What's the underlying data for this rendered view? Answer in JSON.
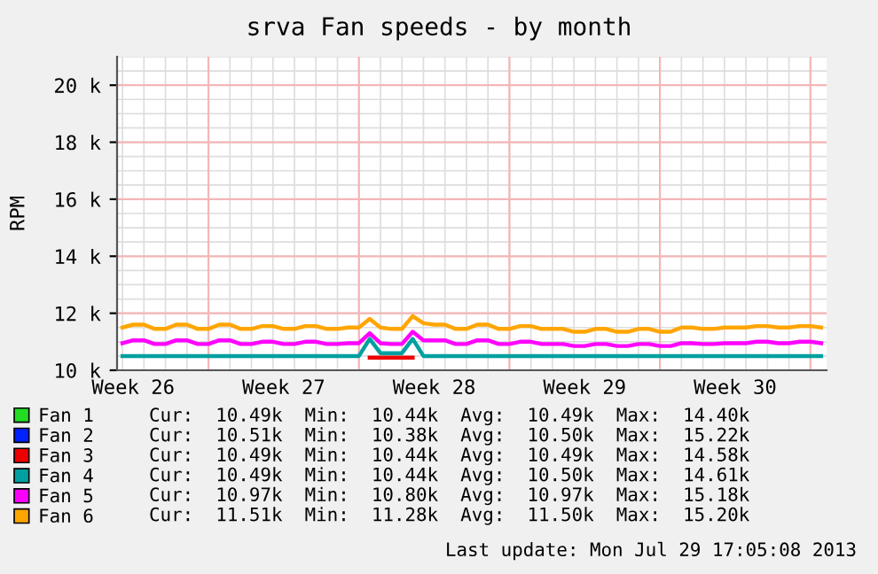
{
  "chart_data": {
    "type": "line",
    "title": "srva Fan speeds - by month",
    "ylabel": "RPM",
    "categories": [
      null,
      "Week 26",
      null,
      null,
      null,
      null,
      null,
      null,
      null,
      null,
      null,
      null,
      null,
      null,
      null,
      "Week 27",
      null,
      null,
      null,
      null,
      null,
      null,
      null,
      null,
      null,
      null,
      null,
      null,
      null,
      "Week 28",
      null,
      null,
      null,
      null,
      null,
      null,
      null,
      null,
      null,
      null,
      null,
      null,
      null,
      "Week 29",
      null,
      null,
      null,
      null,
      null,
      null,
      null,
      null,
      null,
      null,
      null,
      null,
      null,
      "Week 30",
      null,
      null,
      null,
      null,
      null,
      null,
      null,
      null
    ],
    "series": [
      {
        "name": "Fan 1",
        "color": "#22dd22",
        "values": [
          null,
          null,
          null,
          null,
          null,
          null,
          null,
          null,
          null,
          null,
          null,
          null,
          null,
          null,
          null,
          null,
          null,
          null,
          null,
          null,
          null,
          null,
          null,
          null,
          null,
          null,
          null,
          null,
          null,
          null,
          null,
          null,
          null,
          null,
          null,
          null,
          null,
          null,
          null,
          null,
          null,
          null,
          null,
          null,
          null,
          null,
          null,
          null,
          null,
          null,
          null,
          null,
          null,
          null,
          null,
          null,
          null,
          null,
          null,
          null,
          null,
          null,
          null,
          null,
          null,
          null
        ]
      },
      {
        "name": "Fan 2",
        "color": "#0022ff",
        "values": [
          null,
          null,
          null,
          null,
          null,
          null,
          null,
          null,
          null,
          null,
          null,
          null,
          null,
          null,
          null,
          null,
          null,
          null,
          null,
          null,
          null,
          null,
          null,
          null,
          null,
          null,
          null,
          null,
          null,
          null,
          null,
          null,
          null,
          null,
          null,
          null,
          null,
          null,
          null,
          null,
          null,
          null,
          null,
          null,
          null,
          null,
          null,
          null,
          null,
          null,
          null,
          null,
          null,
          null,
          null,
          null,
          null,
          null,
          null,
          null,
          null,
          null,
          null,
          null,
          null,
          null
        ]
      },
      {
        "name": "Fan 3",
        "color": "#ee0000",
        "values": [
          null,
          null,
          null,
          null,
          null,
          null,
          null,
          null,
          null,
          null,
          null,
          null,
          null,
          null,
          null,
          null,
          null,
          null,
          null,
          null,
          null,
          null,
          null,
          10440,
          10440,
          10440,
          10440,
          10440,
          null,
          null,
          null,
          null,
          null,
          null,
          null,
          null,
          null,
          null,
          null,
          null,
          null,
          null,
          null,
          null,
          null,
          null,
          null,
          null,
          null,
          null,
          null,
          null,
          null,
          null,
          null,
          null,
          null,
          null,
          null,
          null,
          null,
          null,
          null,
          null,
          null,
          null
        ]
      },
      {
        "name": "Fan 4",
        "color": "#00a0a0",
        "values": [
          10500,
          10500,
          10500,
          10500,
          10500,
          10500,
          10500,
          10500,
          10500,
          10500,
          10500,
          10500,
          10500,
          10500,
          10500,
          10500,
          10500,
          10500,
          10500,
          10500,
          10500,
          10500,
          10500,
          11100,
          10600,
          10600,
          10600,
          11100,
          10500,
          10500,
          10500,
          10500,
          10500,
          10500,
          10500,
          10500,
          10500,
          10500,
          10500,
          10500,
          10500,
          10500,
          10500,
          10500,
          10500,
          10500,
          10500,
          10500,
          10500,
          10500,
          10500,
          10500,
          10500,
          10500,
          10500,
          10500,
          10500,
          10500,
          10500,
          10500,
          10500,
          10500,
          10500,
          10500,
          10500,
          10500
        ]
      },
      {
        "name": "Fan 5",
        "color": "#ff00ff",
        "values": [
          10950,
          11050,
          11050,
          10920,
          10920,
          11050,
          11050,
          10920,
          10920,
          11050,
          11050,
          10920,
          10920,
          11000,
          11000,
          10920,
          10920,
          11000,
          11000,
          10920,
          10920,
          10950,
          10950,
          11300,
          10950,
          10920,
          10920,
          11350,
          11050,
          11050,
          11050,
          10920,
          10920,
          11050,
          11050,
          10920,
          10920,
          11000,
          11000,
          10920,
          10920,
          10920,
          10850,
          10850,
          10920,
          10920,
          10850,
          10850,
          10920,
          10920,
          10850,
          10850,
          10950,
          10950,
          10920,
          10920,
          10950,
          10950,
          10950,
          11000,
          11000,
          10950,
          10950,
          11000,
          11000,
          10950
        ]
      },
      {
        "name": "Fan 6",
        "color": "#ffa500",
        "values": [
          11500,
          11600,
          11600,
          11450,
          11450,
          11600,
          11600,
          11450,
          11450,
          11600,
          11600,
          11450,
          11450,
          11550,
          11550,
          11450,
          11450,
          11550,
          11550,
          11450,
          11450,
          11500,
          11500,
          11800,
          11500,
          11450,
          11450,
          11900,
          11650,
          11600,
          11600,
          11450,
          11450,
          11600,
          11600,
          11450,
          11450,
          11550,
          11550,
          11450,
          11450,
          11450,
          11350,
          11350,
          11450,
          11450,
          11350,
          11350,
          11450,
          11450,
          11350,
          11350,
          11500,
          11500,
          11450,
          11450,
          11500,
          11500,
          11500,
          11550,
          11550,
          11500,
          11500,
          11550,
          11550,
          11500
        ]
      }
    ],
    "ylim": [
      10000,
      21000
    ],
    "yticks": [
      {
        "value": 10000,
        "label": "10 k"
      },
      {
        "value": 12000,
        "label": "12 k"
      },
      {
        "value": 14000,
        "label": "14 k"
      },
      {
        "value": 16000,
        "label": "16 k"
      },
      {
        "value": 18000,
        "label": "18 k"
      },
      {
        "value": 20000,
        "label": "20 k"
      }
    ],
    "grid": true,
    "legend": "bottom",
    "marker": "none",
    "line_style": "solid",
    "annotations": [
      "Cur:  10.49k  Min:  10.44k  Avg:  10.49k  Max:  14.40k",
      "Cur:  10.51k  Min:  10.38k  Avg:  10.50k  Max:  15.22k",
      "Cur:  10.49k  Min:  10.44k  Avg:  10.49k  Max:  14.58k",
      "Cur:  10.49k  Min:  10.44k  Avg:  10.50k  Max:  14.61k",
      "Cur:  10.97k  Min:  10.80k  Avg:  10.97k  Max:  15.18k",
      "Cur:  11.51k  Min:  11.28k  Avg:  11.50k  Max:  15.20k",
      "Last update: Mon Jul 29 17:05:08 2013"
    ]
  }
}
